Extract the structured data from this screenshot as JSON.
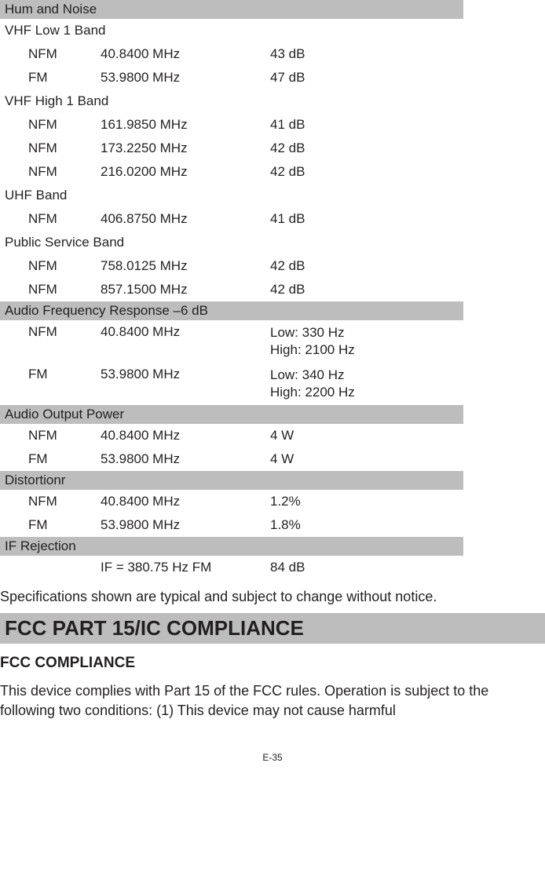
{
  "hum_noise": {
    "header": "Hum and Noise",
    "bands": [
      {
        "name": "VHF Low 1 Band",
        "rows": [
          {
            "mode": "NFM",
            "freq": "40.8400 MHz",
            "val": "43 dB"
          },
          {
            "mode": "FM",
            "freq": "53.9800 MHz",
            "val": "47 dB"
          }
        ]
      },
      {
        "name": "VHF High 1 Band",
        "rows": [
          {
            "mode": "NFM",
            "freq": "161.9850 MHz",
            "val": "41 dB"
          },
          {
            "mode": "NFM",
            "freq": "173.2250 MHz",
            "val": "42 dB"
          },
          {
            "mode": "NFM",
            "freq": "216.0200 MHz",
            "val": "42 dB"
          }
        ]
      },
      {
        "name": "UHF Band",
        "rows": [
          {
            "mode": "NFM",
            "freq": "406.8750 MHz",
            "val": "41 dB"
          }
        ]
      },
      {
        "name": "Public Service Band",
        "rows": [
          {
            "mode": "NFM",
            "freq": "758.0125 MHz",
            "val": "42 dB"
          },
          {
            "mode": "NFM",
            "freq": "857.1500 MHz",
            "val": "42 dB"
          }
        ]
      }
    ]
  },
  "afr": {
    "header": "Audio Frequency Response   –6 dB",
    "rows": [
      {
        "mode": "NFM",
        "freq": "40.8400 MHz",
        "low": "Low:  330 Hz",
        "high": "High:  2100 Hz"
      },
      {
        "mode": "FM",
        "freq": "53.9800 MHz",
        "low": "Low:  340 Hz",
        "high": "High:  2200 Hz"
      }
    ]
  },
  "aop": {
    "header": "Audio Output Power",
    "rows": [
      {
        "mode": "NFM",
        "freq": "40.8400 MHz",
        "val": "4 W"
      },
      {
        "mode": "FM",
        "freq": "53.9800 MHz",
        "val": "4 W"
      }
    ]
  },
  "dist": {
    "header": "Distortionr",
    "rows": [
      {
        "mode": "NFM",
        "freq": "40.8400 MHz",
        "val": "1.2%"
      },
      {
        "mode": "FM",
        "freq": "53.9800 MHz",
        "val": "1.8%"
      }
    ]
  },
  "ifr": {
    "header": "IF Rejection",
    "rows": [
      {
        "mode": "",
        "freq": "IF = 380.75 Hz FM",
        "val": "84 dB"
      }
    ]
  },
  "note": "Specifications shown are typical and subject to change without notice.",
  "fcc": {
    "main_title": "FCC PART 15/IC COMPLIANCE",
    "sub_title": "FCC COMPLIANCE",
    "text": "This device complies with Part 15 of the FCC rules. Operation is subject to the following two conditions: (1) This device may not cause harmful"
  },
  "page_num": "E-35"
}
